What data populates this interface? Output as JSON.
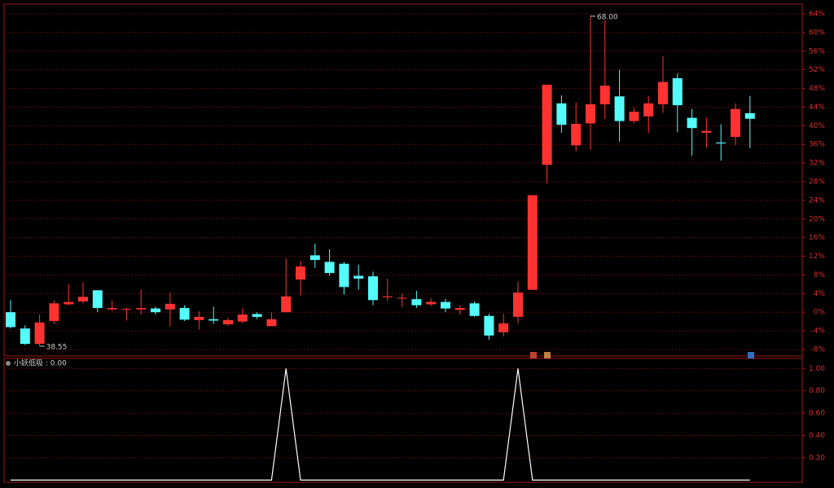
{
  "chart_data": [
    {
      "type": "candlestick",
      "up_color": "#ff3232",
      "down_color": "#54fcfc",
      "open": [
        0,
        -3.5,
        -6.8,
        -1.9,
        1.7,
        2.3,
        4.7,
        0.6,
        0.7,
        0.6,
        0.8,
        0.6,
        0.9,
        -1.7,
        -1.5,
        -2.6,
        -2,
        -0.4,
        -3,
        0,
        7,
        12.2,
        10.8,
        10.4,
        7.8,
        7.7,
        3.2,
        3.1,
        2.8,
        1.7,
        2.2,
        0.5,
        1.9,
        -0.8,
        -4.3,
        -1,
        4.8,
        31.6,
        44.8,
        35.8,
        40.5,
        44.6,
        46.3,
        41,
        42,
        44.6,
        50.2,
        41.7,
        38.5,
        36.4,
        37.6,
        42.7
      ],
      "high": [
        2.6,
        -2.8,
        -0.5,
        2.5,
        6,
        6.5,
        4.8,
        2.5,
        0.9,
        4.9,
        1.2,
        4.2,
        1.5,
        0.2,
        1.2,
        -1.2,
        0.8,
        0,
        0,
        11.5,
        11,
        14.7,
        13.5,
        10.8,
        10.2,
        8.7,
        7.2,
        4,
        4.6,
        3,
        2.9,
        1.5,
        2.3,
        -0.3,
        -0.3,
        6.6,
        25.1,
        48.8,
        46.5,
        45,
        63.5,
        62.6,
        52,
        43.8,
        46.4,
        54.9,
        51.2,
        43.6,
        41.7,
        40.3,
        44.8,
        46.4
      ],
      "low": [
        -3.5,
        -7,
        -7.3,
        -2.5,
        1.5,
        1.9,
        0,
        0.3,
        -1.8,
        -0.5,
        -0.5,
        -3,
        -1.9,
        -3.7,
        -2.5,
        -2.9,
        -2.4,
        -1.5,
        -3,
        0,
        3.6,
        9.5,
        7.8,
        3.8,
        4.8,
        1.5,
        2.4,
        1.1,
        0.9,
        1.3,
        0,
        -0.5,
        -1,
        -5.9,
        -5.2,
        -2.3,
        4.8,
        27.6,
        38.5,
        34.5,
        34.8,
        41.4,
        36.6,
        40.5,
        38.4,
        42.8,
        38.6,
        33.6,
        35.3,
        32.5,
        35.8,
        35.2
      ],
      "close": [
        -3.2,
        -6.8,
        -2.2,
        1.9,
        2.2,
        3.3,
        0.9,
        0.9,
        0.7,
        0.9,
        0,
        1.8,
        -1.6,
        -1,
        -1.8,
        -1.7,
        -0.5,
        -1,
        -1.5,
        3.4,
        9.8,
        11.2,
        8.4,
        5.4,
        7.2,
        2.6,
        3.4,
        3.1,
        1.5,
        2.2,
        0.8,
        0.9,
        -0.8,
        -5,
        -2.4,
        4.2,
        25.1,
        48.8,
        40.2,
        40.4,
        44.6,
        48.6,
        41,
        43,
        44.8,
        49.4,
        44.4,
        39.5,
        38.9,
        36.2,
        43.6,
        41.5
      ],
      "high_label": "68.00",
      "low_label": "38.55",
      "ylim": [
        -9.4,
        66.1
      ],
      "yticks": [
        {
          "value": -8,
          "label": "-8%"
        },
        {
          "value": -4,
          "label": "-4%"
        },
        {
          "value": 0,
          "label": "0%"
        },
        {
          "value": 4,
          "label": "4%"
        },
        {
          "value": 8,
          "label": "8%"
        },
        {
          "value": 12,
          "label": "12%"
        },
        {
          "value": 16,
          "label": "16%"
        },
        {
          "value": 20,
          "label": "20%"
        },
        {
          "value": 24,
          "label": "24%"
        },
        {
          "value": 28,
          "label": "28%"
        },
        {
          "value": 32,
          "label": "32%"
        },
        {
          "value": 36,
          "label": "36%"
        },
        {
          "value": 40,
          "label": "40%"
        },
        {
          "value": 44,
          "label": "44%"
        },
        {
          "value": 48,
          "label": "48%"
        },
        {
          "value": 52,
          "label": "52%"
        },
        {
          "value": 56,
          "label": "56%"
        },
        {
          "value": 60,
          "label": "60%"
        },
        {
          "value": 64,
          "label": "64%"
        }
      ],
      "grid": true
    },
    {
      "type": "line",
      "title": "小妖低吸 : 0.00",
      "color": "#ffffff",
      "values": [
        0,
        0,
        0,
        0,
        0,
        0,
        0,
        0,
        0,
        0,
        0,
        0,
        0,
        0,
        0,
        0,
        0,
        0,
        0,
        1,
        0,
        0,
        0,
        0,
        0,
        0,
        0,
        0,
        0,
        0,
        0,
        0,
        0,
        0,
        0,
        1,
        0,
        0,
        0,
        0,
        0,
        0,
        0,
        0,
        0,
        0,
        0,
        0,
        0,
        0,
        0,
        0
      ],
      "ylim": [
        -0.02,
        1.09
      ],
      "yticks": [
        {
          "value": 0.2,
          "label": "0.20"
        },
        {
          "value": 0.4,
          "label": "0.40"
        },
        {
          "value": 0.6,
          "label": "0.60"
        },
        {
          "value": 0.8,
          "label": "0.80"
        },
        {
          "value": 1,
          "label": "1.00"
        }
      ],
      "grid": true
    }
  ]
}
